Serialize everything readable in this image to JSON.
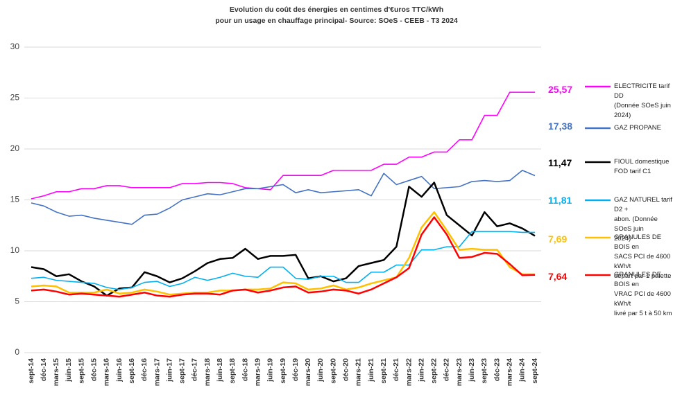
{
  "chart_data": {
    "type": "line",
    "title": "Evolution du coût des énergies en centimes d'€uros TTC/kWh",
    "subtitle": "pour un usage en chauffage principal- Source: SOeS - CEEB - T3 2024",
    "categories": [
      "sept-14",
      "déc-14",
      "mars-15",
      "juin-15",
      "sept-15",
      "déc-15",
      "mars-16",
      "juin-16",
      "sept-16",
      "déc-16",
      "mars-17",
      "juin-17",
      "sept-17",
      "déc-17",
      "mars-18",
      "juin-18",
      "sept-18",
      "déc-18",
      "mars-19",
      "juin-19",
      "sept-19",
      "déc-19",
      "mars-20",
      "juin-20",
      "sept-20",
      "déc-20",
      "mars-21",
      "juin-21",
      "sept-21",
      "déc-21",
      "mars-22",
      "juin-22",
      "sept-22",
      "déc-22",
      "mars-23",
      "juin-23",
      "sept-23",
      "déc-23",
      "mars-24",
      "juin-24",
      "sept-24"
    ],
    "ylim": [
      0,
      30
    ],
    "yticks": [
      0,
      5,
      10,
      15,
      20,
      25,
      30
    ],
    "grid": true,
    "series": [
      {
        "name": "ELECTRICITE tarif DD\n(Donnée SOeS juin 2024)",
        "color": "#ff00ff",
        "values": [
          15.1,
          15.4,
          15.8,
          15.8,
          16.1,
          16.1,
          16.4,
          16.4,
          16.2,
          16.2,
          16.2,
          16.2,
          16.6,
          16.6,
          16.7,
          16.7,
          16.6,
          16.2,
          16.1,
          16.0,
          17.4,
          17.4,
          17.4,
          17.4,
          17.9,
          17.9,
          17.9,
          17.9,
          18.5,
          18.5,
          19.2,
          19.2,
          19.7,
          19.7,
          20.9,
          20.9,
          23.3,
          23.3,
          25.57,
          25.57,
          25.57
        ],
        "value_labels": [
          null,
          null,
          null,
          null,
          null,
          null,
          null,
          null,
          null,
          null,
          null,
          null,
          null,
          null,
          null,
          null,
          null,
          null,
          null,
          null,
          null,
          null,
          null,
          null,
          null,
          null,
          null,
          null,
          null,
          null,
          null,
          null,
          null,
          null,
          null,
          null,
          null,
          null,
          null,
          null,
          "25,57"
        ]
      },
      {
        "name": "GAZ PROPANE",
        "color": "#4472c4",
        "values": [
          14.7,
          14.4,
          13.8,
          13.4,
          13.5,
          13.2,
          13.0,
          12.8,
          12.6,
          13.5,
          13.6,
          14.2,
          15.0,
          15.3,
          15.6,
          15.5,
          15.8,
          16.1,
          16.1,
          16.3,
          16.5,
          15.7,
          16.0,
          15.7,
          15.8,
          15.9,
          16.0,
          15.4,
          17.6,
          16.5,
          16.9,
          17.3,
          16.1,
          16.2,
          16.3,
          16.8,
          16.9,
          16.8,
          16.9,
          17.9,
          17.38
        ],
        "value_labels": [
          null,
          null,
          null,
          null,
          null,
          null,
          null,
          null,
          null,
          null,
          null,
          null,
          null,
          null,
          null,
          null,
          null,
          null,
          null,
          null,
          null,
          null,
          null,
          null,
          null,
          null,
          null,
          null,
          null,
          null,
          null,
          null,
          null,
          null,
          null,
          null,
          null,
          null,
          null,
          null,
          "17,38"
        ]
      },
      {
        "name": "FIOUL domestique\nFOD tarif C1",
        "color": "#000000",
        "values": [
          8.4,
          8.2,
          7.5,
          7.7,
          7.0,
          6.5,
          5.6,
          6.3,
          6.4,
          7.9,
          7.5,
          6.9,
          7.3,
          8.0,
          8.8,
          9.2,
          9.3,
          10.2,
          9.2,
          9.5,
          9.5,
          9.6,
          7.3,
          7.5,
          7.0,
          7.3,
          8.5,
          8.8,
          9.1,
          10.4,
          16.3,
          15.3,
          16.7,
          13.5,
          12.5,
          11.5,
          13.8,
          12.4,
          12.7,
          12.2,
          11.47
        ],
        "value_labels": [
          null,
          null,
          null,
          null,
          null,
          null,
          null,
          null,
          null,
          null,
          null,
          null,
          null,
          null,
          null,
          null,
          null,
          null,
          null,
          null,
          null,
          null,
          null,
          null,
          null,
          null,
          null,
          null,
          null,
          null,
          null,
          null,
          null,
          null,
          null,
          null,
          null,
          null,
          null,
          null,
          "11,47"
        ]
      },
      {
        "name": "GAZ NATUREL tarif D2 +\nabon. (Donnée SOeS juin\n2024)",
        "color": "#00b0f0",
        "values": [
          7.3,
          7.4,
          7.1,
          7.0,
          6.9,
          6.8,
          6.4,
          6.2,
          6.4,
          6.9,
          7.0,
          6.5,
          6.8,
          7.4,
          7.1,
          7.4,
          7.8,
          7.5,
          7.4,
          8.4,
          8.4,
          7.3,
          7.2,
          7.5,
          7.5,
          6.9,
          6.9,
          7.9,
          7.9,
          8.6,
          8.6,
          10.1,
          10.1,
          10.4,
          10.4,
          11.9,
          11.9,
          11.9,
          11.9,
          11.81,
          11.81
        ],
        "value_labels": [
          null,
          null,
          null,
          null,
          null,
          null,
          null,
          null,
          null,
          null,
          null,
          null,
          null,
          null,
          null,
          null,
          null,
          null,
          null,
          null,
          null,
          null,
          null,
          null,
          null,
          null,
          null,
          null,
          null,
          null,
          null,
          null,
          null,
          null,
          null,
          null,
          null,
          null,
          null,
          null,
          "11,81"
        ]
      },
      {
        "name": "GRANULES DE BOIS en\nSACS PCI de 4600 kWh/t\ndépart par 1 palette",
        "color": "#ffc000",
        "values": [
          6.5,
          6.6,
          6.5,
          5.9,
          5.9,
          5.9,
          6.2,
          5.8,
          5.9,
          6.2,
          6.0,
          5.7,
          5.8,
          5.9,
          5.9,
          6.1,
          6.1,
          6.2,
          6.2,
          6.3,
          6.9,
          6.8,
          6.2,
          6.3,
          6.6,
          6.2,
          6.4,
          6.8,
          7.1,
          7.4,
          9.3,
          12.3,
          13.8,
          12.0,
          10.1,
          10.2,
          10.1,
          10.1,
          8.4,
          7.7,
          7.69
        ],
        "value_labels": [
          null,
          null,
          null,
          null,
          null,
          null,
          null,
          null,
          null,
          null,
          null,
          null,
          null,
          null,
          null,
          null,
          null,
          null,
          null,
          null,
          null,
          null,
          null,
          null,
          null,
          null,
          null,
          null,
          null,
          null,
          null,
          null,
          null,
          null,
          null,
          null,
          null,
          null,
          null,
          null,
          "7,69"
        ]
      },
      {
        "name": "GRANULES DE BOIS en\nVRAC  PCI de 4600 kWh/t\nlivré par 5 t à 50 km",
        "color": "#ff0000",
        "values": [
          6.1,
          6.2,
          6.0,
          5.7,
          5.8,
          5.7,
          5.6,
          5.5,
          5.7,
          5.9,
          5.6,
          5.5,
          5.7,
          5.8,
          5.8,
          5.7,
          6.1,
          6.2,
          5.9,
          6.1,
          6.4,
          6.5,
          5.9,
          6.0,
          6.2,
          6.1,
          5.8,
          6.2,
          6.8,
          7.4,
          8.3,
          11.6,
          13.3,
          11.6,
          9.3,
          9.4,
          9.8,
          9.7,
          8.7,
          7.6,
          7.64
        ],
        "value_labels": [
          null,
          null,
          null,
          null,
          null,
          null,
          null,
          null,
          null,
          null,
          null,
          null,
          null,
          null,
          null,
          null,
          null,
          null,
          null,
          null,
          null,
          null,
          null,
          null,
          null,
          null,
          null,
          null,
          null,
          null,
          null,
          null,
          null,
          null,
          null,
          null,
          null,
          null,
          null,
          null,
          "7,64"
        ]
      }
    ]
  }
}
